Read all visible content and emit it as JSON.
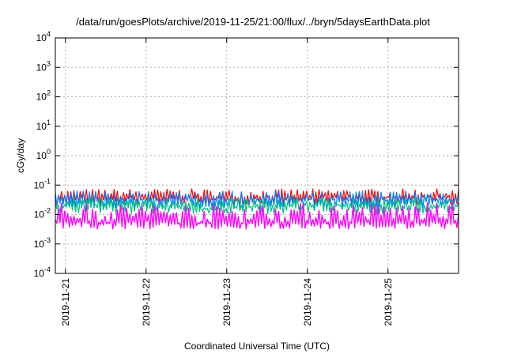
{
  "chart_data": {
    "type": "line",
    "title": "/data/run/goesPlots/archive/2019-11-25/21:00/flux/../bryn/5daysEarthData.plot",
    "xlabel": "Coordinated Universal Time (UTC)",
    "ylabel": "cGy/day",
    "yscale": "log",
    "ylim": [
      0.0001,
      10000
    ],
    "xlim": [
      "2019-11-20T21:00",
      "2019-11-25T21:00"
    ],
    "grid": true,
    "y_ticks": [
      {
        "base": "10",
        "exp": "-4",
        "value": 0.0001
      },
      {
        "base": "10",
        "exp": "-3",
        "value": 0.001
      },
      {
        "base": "10",
        "exp": "-2",
        "value": 0.01
      },
      {
        "base": "10",
        "exp": "-1",
        "value": 0.1
      },
      {
        "base": "10",
        "exp": "0",
        "value": 1
      },
      {
        "base": "10",
        "exp": "1",
        "value": 10
      },
      {
        "base": "10",
        "exp": "2",
        "value": 100
      },
      {
        "base": "10",
        "exp": "3",
        "value": 1000
      },
      {
        "base": "10",
        "exp": "4",
        "value": 10000
      }
    ],
    "x_ticks": [
      "2019-11-21",
      "2019-11-22",
      "2019-11-23",
      "2019-11-24",
      "2019-11-25"
    ],
    "series": [
      {
        "color": "#ff0000",
        "approx_range": [
          0.02,
          0.08
        ],
        "x": [
          "2019-11-20T21:00",
          "2019-11-21T09:00",
          "2019-11-21T21:00",
          "2019-11-22T09:00",
          "2019-11-22T21:00",
          "2019-11-23T09:00",
          "2019-11-23T21:00",
          "2019-11-24T09:00",
          "2019-11-24T21:00",
          "2019-11-25T09:00",
          "2019-11-25T21:00"
        ],
        "values": [
          0.035,
          0.04,
          0.038,
          0.042,
          0.036,
          0.04,
          0.039,
          0.041,
          0.037,
          0.043,
          0.038
        ]
      },
      {
        "color": "#0080ff",
        "approx_range": [
          0.015,
          0.07
        ],
        "x": [
          "2019-11-20T21:00",
          "2019-11-21T09:00",
          "2019-11-21T21:00",
          "2019-11-22T09:00",
          "2019-11-22T21:00",
          "2019-11-23T09:00",
          "2019-11-23T21:00",
          "2019-11-24T09:00",
          "2019-11-24T21:00",
          "2019-11-25T09:00",
          "2019-11-25T21:00"
        ],
        "values": [
          0.03,
          0.032,
          0.03,
          0.034,
          0.031,
          0.03,
          0.033,
          0.031,
          0.032,
          0.034,
          0.03
        ]
      },
      {
        "color": "#00c080",
        "approx_range": [
          0.01,
          0.04
        ],
        "x": [
          "2019-11-20T21:00",
          "2019-11-21T09:00",
          "2019-11-21T21:00",
          "2019-11-22T09:00",
          "2019-11-22T21:00",
          "2019-11-23T09:00",
          "2019-11-23T21:00",
          "2019-11-24T09:00",
          "2019-11-24T21:00",
          "2019-11-25T09:00",
          "2019-11-25T21:00"
        ],
        "values": [
          0.02,
          0.021,
          0.019,
          0.02,
          0.015,
          0.018,
          0.02,
          0.021,
          0.019,
          0.02,
          0.02
        ]
      },
      {
        "color": "#ff00ff",
        "approx_range": [
          0.003,
          0.03
        ],
        "x": [
          "2019-11-20T21:00",
          "2019-11-21T09:00",
          "2019-11-21T21:00",
          "2019-11-22T09:00",
          "2019-11-22T21:00",
          "2019-11-23T09:00",
          "2019-11-23T21:00",
          "2019-11-24T09:00",
          "2019-11-24T21:00",
          "2019-11-25T09:00",
          "2019-11-25T21:00"
        ],
        "values": [
          0.006,
          0.005,
          0.006,
          0.005,
          0.005,
          0.005,
          0.006,
          0.005,
          0.006,
          0.005,
          0.006
        ]
      }
    ]
  }
}
